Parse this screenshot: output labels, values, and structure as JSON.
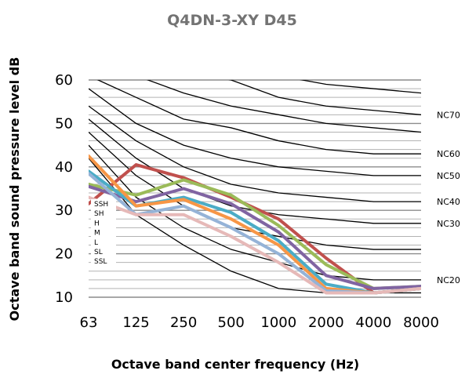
{
  "chart_data": {
    "type": "line",
    "title": "Q4DN-3-XY D45",
    "xlabel": "Octave band center frequency (Hz)",
    "ylabel": "Octave band sound pressure level dB",
    "categories": [
      "63",
      "125",
      "250",
      "500",
      "1000",
      "2000",
      "4000",
      "8000"
    ],
    "ylim": [
      10,
      60
    ],
    "yticks": [
      10,
      20,
      30,
      40,
      50,
      60
    ],
    "grid": true,
    "legend_placement": "left",
    "colors": {
      "grid_minor": "#b3b3b3",
      "grid_major": "#8c8c8c",
      "nc_curve": "#000000"
    },
    "nc_curves": [
      {
        "label": "",
        "values": [
          60.5,
          60.5,
          60.5,
          60.5,
          60.5,
          60.5,
          60.5,
          60.5
        ]
      },
      {
        "label": "",
        "values": [
          62,
          62,
          62,
          62,
          61,
          59,
          58,
          57
        ]
      },
      {
        "label": "NC70",
        "values": [
          62,
          62,
          62,
          60,
          56,
          54,
          53,
          52
        ]
      },
      {
        "label": "",
        "values": [
          62,
          61,
          57,
          54,
          52,
          50,
          49,
          48
        ]
      },
      {
        "label": "NC60",
        "values": [
          61,
          56,
          51,
          49,
          46,
          44,
          43,
          43
        ]
      },
      {
        "label": "NC50",
        "values": [
          58,
          50,
          45,
          42,
          40,
          39,
          38,
          38
        ]
      },
      {
        "label": "NC40",
        "values": [
          54,
          46,
          40,
          36,
          34,
          33,
          32,
          32
        ]
      },
      {
        "label": "NC30",
        "values": [
          51,
          42,
          35,
          31,
          29,
          28,
          27,
          27
        ]
      },
      {
        "label": "",
        "values": [
          48,
          38,
          31,
          26,
          24,
          22,
          21,
          21
        ]
      },
      {
        "label": "NC20",
        "values": [
          45,
          33,
          26,
          21,
          18,
          15,
          14,
          14
        ]
      },
      {
        "label": "",
        "values": [
          42,
          29,
          22,
          16,
          12,
          11,
          11,
          11
        ]
      }
    ],
    "series": [
      {
        "name": "SSH",
        "color": "#c0504d",
        "values": [
          31.5,
          40.5,
          37.5,
          33,
          28,
          19,
          11,
          12
        ]
      },
      {
        "name": "SH",
        "color": "#9bbb59",
        "values": [
          36,
          33.5,
          37,
          33.5,
          26.5,
          17.5,
          12,
          12.5
        ]
      },
      {
        "name": "H",
        "color": "#8064a2",
        "values": [
          35.5,
          32,
          35,
          31.5,
          25,
          15,
          12,
          12.5
        ]
      },
      {
        "name": "M",
        "color": "#4bacc6",
        "values": [
          39,
          31,
          33,
          29.5,
          23,
          13,
          11,
          12
        ]
      },
      {
        "name": "L",
        "color": "#f79646",
        "values": [
          42.5,
          31,
          32.5,
          28,
          22,
          12,
          11,
          12
        ]
      },
      {
        "name": "SL",
        "color": "#95b3d7",
        "values": [
          38.5,
          29,
          31,
          26,
          20,
          11.5,
          11,
          12
        ]
      },
      {
        "name": "SSL",
        "color": "#e6b9b8",
        "values": [
          33,
          29,
          29,
          24,
          18,
          11,
          11,
          12
        ]
      }
    ]
  }
}
